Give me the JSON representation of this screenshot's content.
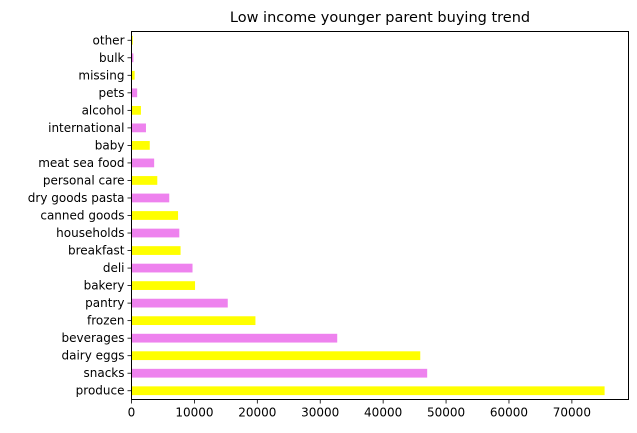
{
  "chart_data": {
    "type": "bar",
    "orientation": "horizontal",
    "title": "Low income younger parent buying trend",
    "xlabel": "",
    "ylabel": "",
    "categories": [
      "produce",
      "snacks",
      "dairy eggs",
      "beverages",
      "frozen",
      "pantry",
      "bakery",
      "deli",
      "breakfast",
      "households",
      "canned goods",
      "dry goods pasta",
      "personal care",
      "meat sea food",
      "baby",
      "international",
      "alcohol",
      "pets",
      "missing",
      "bulk",
      "other"
    ],
    "values": [
      75200,
      47000,
      45900,
      32700,
      19700,
      15300,
      10100,
      9700,
      7800,
      7600,
      7400,
      6000,
      4100,
      3600,
      2900,
      2300,
      1500,
      900,
      500,
      300,
      200
    ],
    "bar_colors": [
      "#ffff00",
      "#ee82ee"
    ],
    "xlim": [
      0,
      79000
    ],
    "xticks": [
      0,
      10000,
      20000,
      30000,
      40000,
      50000,
      60000,
      70000
    ],
    "grid": false,
    "legend": "none"
  }
}
